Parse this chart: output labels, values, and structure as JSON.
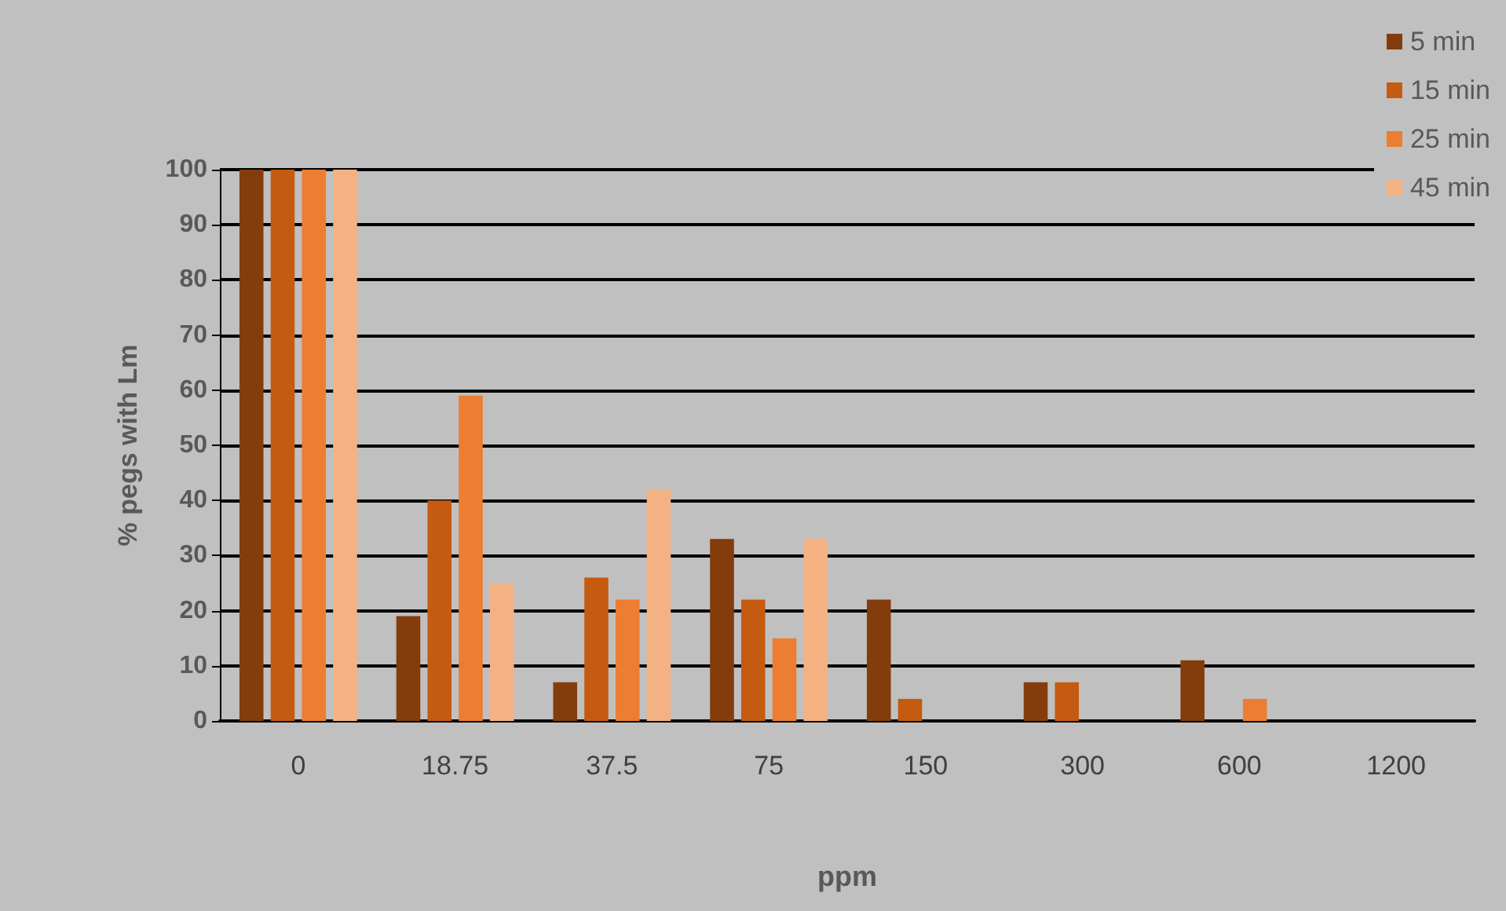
{
  "chart_data": {
    "type": "bar",
    "xlabel": "ppm",
    "ylabel": "% pegs with Lm",
    "categories": [
      "0",
      "18.75",
      "37.5",
      "75",
      "150",
      "300",
      "600",
      "1200"
    ],
    "series": [
      {
        "name": "5 min",
        "color": "#843c0c",
        "values": [
          100,
          19,
          7,
          33,
          22,
          7,
          11,
          0
        ]
      },
      {
        "name": "15 min",
        "color": "#c55a11",
        "values": [
          100,
          40,
          26,
          22,
          4,
          7,
          0,
          0
        ]
      },
      {
        "name": "25 min",
        "color": "#ed7d31",
        "values": [
          100,
          59,
          22,
          15,
          0,
          0,
          4,
          0
        ]
      },
      {
        "name": "45 min",
        "color": "#f4b183",
        "values": [
          100,
          25,
          42,
          33,
          0,
          0,
          0,
          0
        ]
      }
    ],
    "ylim": [
      0,
      100
    ],
    "yticks": [
      0,
      10,
      20,
      30,
      40,
      50,
      60,
      70,
      80,
      90,
      100
    ],
    "grid": "y",
    "legend": "top right"
  }
}
